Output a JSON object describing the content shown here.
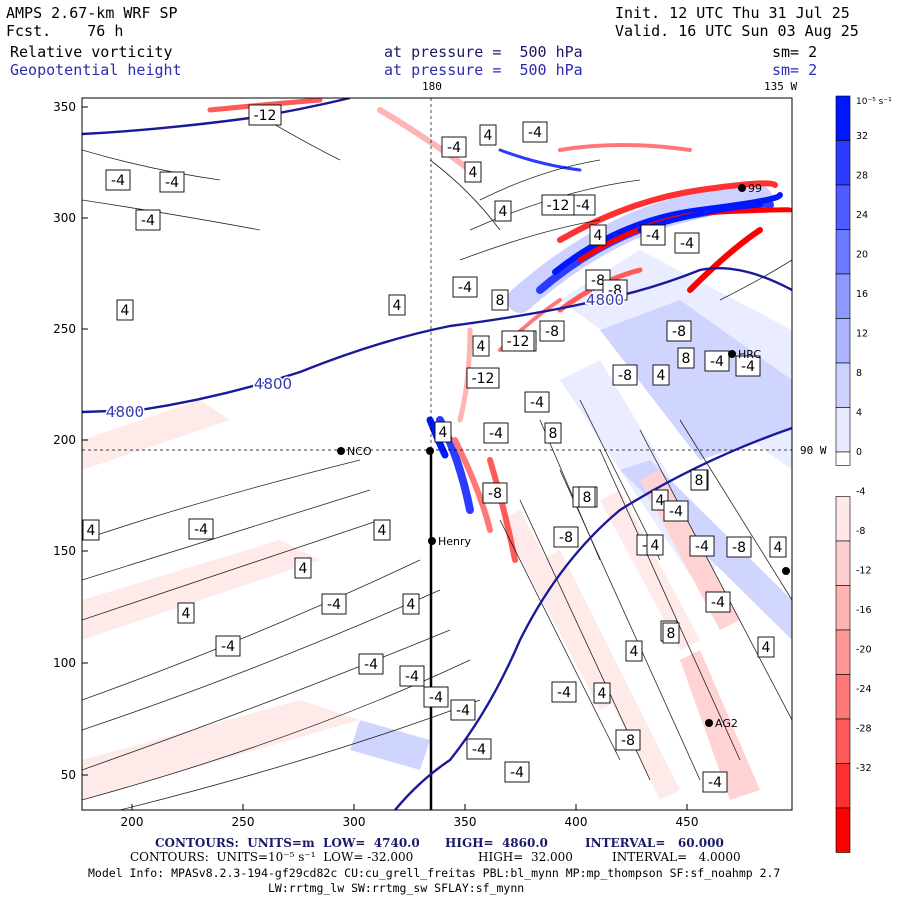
{
  "header": {
    "model": "AMPS 2.67-km WRF SP",
    "forecast": "Fcst.    76 h",
    "init": "Init. 12 UTC Thu 31 Jul 25",
    "valid": "Valid. 16 UTC Sun 03 Aug 25",
    "field1": "Relative vorticity",
    "field2": "Geopotential height",
    "level1": "at pressure =  500 hPa",
    "level2": "at pressure =  500 hPa",
    "sm1": "sm= 2",
    "sm2": "sm= 2"
  },
  "lon_labels": {
    "top_180": "180",
    "top_135": "135 W",
    "right_90": "90 W"
  },
  "axes": {
    "x_ticks": [
      "200",
      "250",
      "300",
      "350",
      "400",
      "450"
    ],
    "y_ticks": [
      "50",
      "100",
      "150",
      "200",
      "250",
      "300",
      "350"
    ]
  },
  "colorbar": {
    "unit": "10⁻⁵ s⁻¹",
    "labels": [
      "32",
      "28",
      "24",
      "20",
      "16",
      "12",
      "8",
      "4",
      "0",
      "-4",
      "-8",
      "-12",
      "-16",
      "-20",
      "-24",
      "-28",
      "-32"
    ],
    "colors": [
      "#0018ff",
      "#2b3cff",
      "#4d5bff",
      "#6b79ff",
      "#8e98ff",
      "#adb4ff",
      "#ccd1ff",
      "#e8eaff",
      "#ffffff",
      "#ffe8e8",
      "#ffcfcf",
      "#ffb4b4",
      "#ff9696",
      "#ff7878",
      "#ff5a5a",
      "#ff3030",
      "#ff0000"
    ]
  },
  "stations": [
    {
      "name": "NCO"
    },
    {
      "name": "Henry"
    },
    {
      "name": "HRC"
    },
    {
      "name": "AG2"
    },
    {
      "name": "99"
    }
  ],
  "height_contour_label": "4800",
  "vorticity_labels": [
    "-12",
    "-4",
    "-4",
    "-4",
    "4",
    "4",
    "8",
    "-4",
    "4",
    "-8",
    "8",
    "-12",
    "-4",
    "4",
    "4",
    "4",
    "-4",
    "-4",
    "-4",
    "4",
    "-8",
    "-8",
    "-4",
    "4",
    "-4",
    "8",
    "8",
    "-4",
    "4",
    "8",
    "-8",
    "8",
    "-4",
    "-4",
    "-8",
    "4",
    "4",
    "4",
    "-4",
    "-4",
    "-4",
    "4",
    "4",
    "4",
    "-4",
    "-4",
    "-4",
    "-4",
    "-4",
    "-4",
    "-8",
    "4",
    "4",
    "-4",
    "-4",
    "4",
    "4",
    "-4",
    "-4",
    "-8",
    "-8",
    "-4",
    "-12",
    "-12",
    "-4",
    "4",
    "8",
    "8",
    "8",
    "4",
    "-4",
    "-8"
  ],
  "footer": {
    "line1_contours": "CONTOURS:  UNITS=m  LOW=  4740.0",
    "line1_high": "HIGH=  4860.0",
    "line1_interval": "INTERVAL=   60.000",
    "line2_contours": "CONTOURS:  UNITS=10⁻⁵ s⁻¹  LOW= -32.000",
    "line2_high": "HIGH=  32.000",
    "line2_interval": "INTERVAL=   4.0000",
    "model_info": "Model Info: MPASv8.2.3-194-gf29cd82c CU:cu_grell_freitas PBL:bl_mynn MP:mp_thompson SF:sf_noahmp 2.7",
    "model_info2": "LW:rrtmg_lw SW:rrtmg_sw SFLAY:sf_mynn"
  }
}
